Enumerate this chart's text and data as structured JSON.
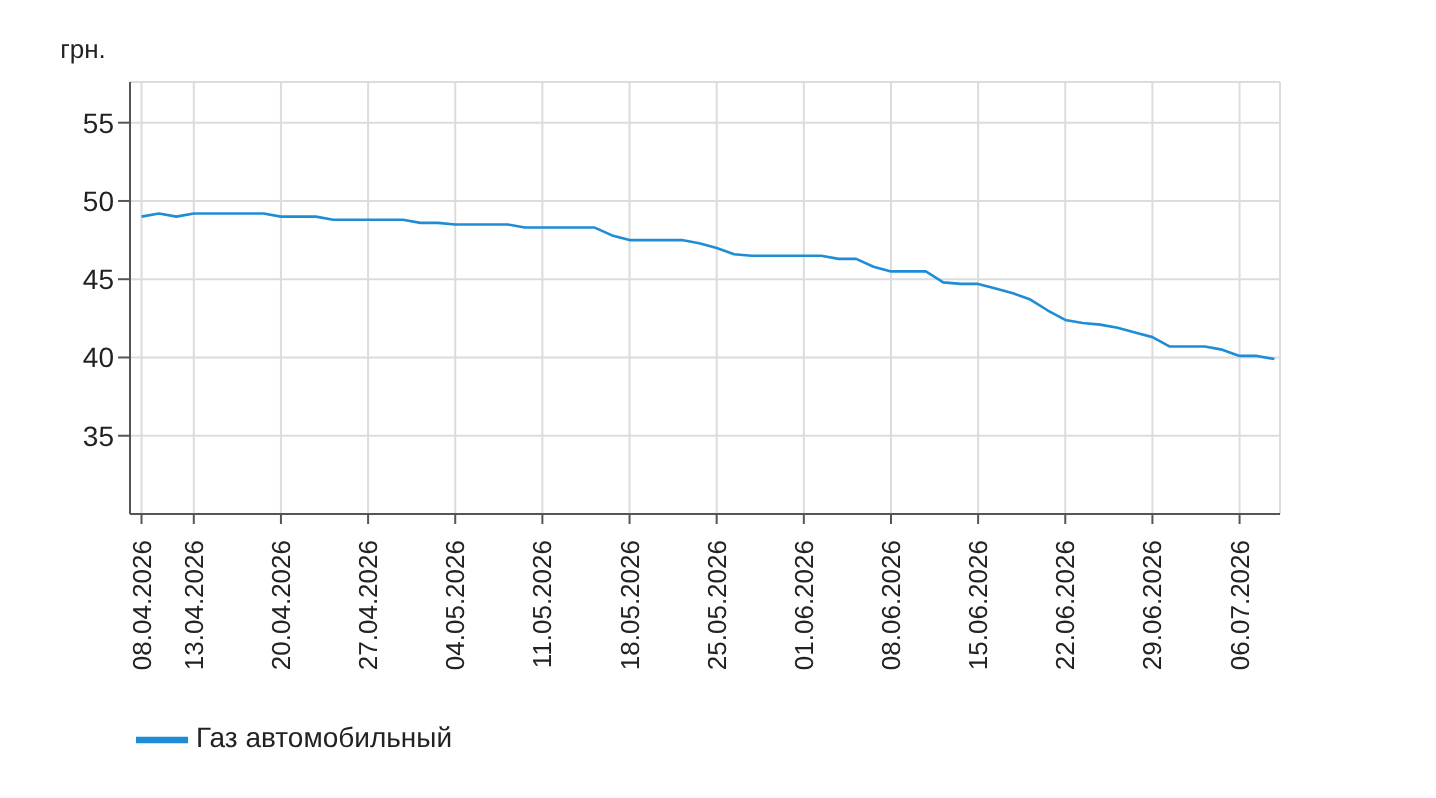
{
  "chart_data": {
    "type": "line",
    "ylabel": "грн.",
    "categories": [
      "08.04.2026",
      null,
      null,
      "13.04.2026",
      null,
      null,
      null,
      null,
      "20.04.2026",
      null,
      null,
      null,
      null,
      "27.04.2026",
      null,
      null,
      null,
      null,
      "04.05.2026",
      null,
      null,
      null,
      null,
      "11.05.2026",
      null,
      null,
      null,
      null,
      "18.05.2026",
      null,
      null,
      null,
      null,
      "25.05.2026",
      null,
      null,
      null,
      null,
      "01.06.2026",
      null,
      null,
      null,
      null,
      "08.06.2026",
      null,
      null,
      null,
      null,
      "15.06.2026",
      null,
      null,
      null,
      null,
      "22.06.2026",
      null,
      null,
      null,
      null,
      "29.06.2026",
      null,
      null,
      null,
      null,
      "06.07.2026",
      null,
      null
    ],
    "series": [
      {
        "name": "Газ автомобильный",
        "color": "#1f8dd6",
        "values": [
          49.0,
          49.2,
          49.0,
          49.2,
          49.2,
          49.2,
          49.2,
          49.2,
          49.0,
          49.0,
          49.0,
          48.8,
          48.8,
          48.8,
          48.8,
          48.8,
          48.6,
          48.6,
          48.5,
          48.5,
          48.5,
          48.5,
          48.3,
          48.3,
          48.3,
          48.3,
          48.3,
          47.8,
          47.5,
          47.5,
          47.5,
          47.5,
          47.3,
          47.0,
          46.6,
          46.5,
          46.5,
          46.5,
          46.5,
          46.5,
          46.3,
          46.3,
          45.8,
          45.5,
          45.5,
          45.5,
          44.8,
          44.7,
          44.7,
          44.4,
          44.1,
          43.7,
          43.0,
          42.4,
          42.2,
          42.1,
          41.9,
          41.6,
          41.3,
          40.7,
          40.7,
          40.7,
          40.5,
          40.1,
          40.1,
          39.9
        ]
      }
    ],
    "ylim": [
      30,
      57.6
    ],
    "yticks": [
      35,
      40,
      45,
      50,
      55
    ],
    "grid": true,
    "legend": "bottom left",
    "marker": "none",
    "line_style": "solid"
  }
}
